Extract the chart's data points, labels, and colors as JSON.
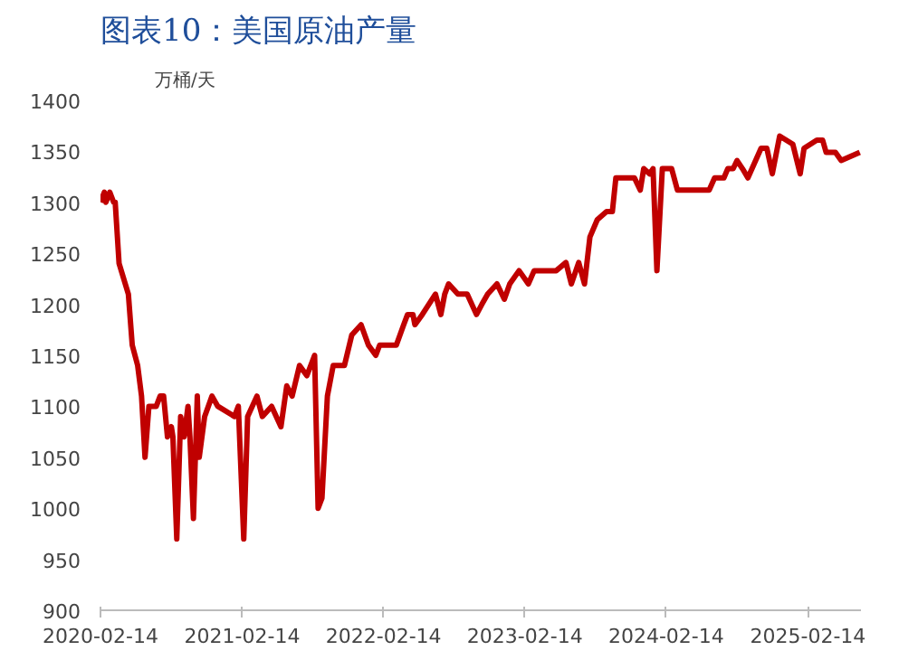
{
  "chart_data": {
    "type": "line",
    "title": "图表10：美国原油产量",
    "ylabel": "万桶/天",
    "x": [
      "2020-02-14",
      "2020-02-24",
      "2020-02-28",
      "2020-03-09",
      "2020-03-19",
      "2020-03-23",
      "2020-04-02",
      "2020-04-26",
      "2020-05-06",
      "2020-05-20",
      "2020-05-30",
      "2020-06-08",
      "2020-06-18",
      "2020-07-07",
      "2020-07-17",
      "2020-07-26",
      "2020-08-05",
      "2020-08-15",
      "2020-08-19",
      "2020-08-29",
      "2020-09-08",
      "2020-09-17",
      "2020-09-27",
      "2020-10-02",
      "2020-10-11",
      "2020-10-21",
      "2020-10-26",
      "2020-11-09",
      "2020-11-28",
      "2020-12-13",
      "2021-01-25",
      "2021-02-04",
      "2021-02-18",
      "2021-02-28",
      "2021-03-24",
      "2021-04-07",
      "2021-05-01",
      "2021-05-25",
      "2021-06-09",
      "2021-06-23",
      "2021-07-12",
      "2021-07-31",
      "2021-08-20",
      "2021-08-29",
      "2021-09-08",
      "2021-09-22",
      "2021-10-07",
      "2021-11-05",
      "2021-11-24",
      "2021-12-18",
      "2022-01-06",
      "2022-01-25",
      "2022-02-04",
      "2022-03-19",
      "2022-04-07",
      "2022-04-17",
      "2022-05-01",
      "2022-05-06",
      "2022-05-25",
      "2022-06-28",
      "2022-07-12",
      "2022-07-22",
      "2022-08-01",
      "2022-08-25",
      "2022-09-18",
      "2022-10-12",
      "2022-10-26",
      "2022-11-10",
      "2022-12-04",
      "2022-12-23",
      "2023-01-06",
      "2023-01-30",
      "2023-02-23",
      "2023-03-10",
      "2023-04-12",
      "2023-05-06",
      "2023-05-31",
      "2023-06-14",
      "2023-07-03",
      "2023-07-18",
      "2023-08-01",
      "2023-08-20",
      "2023-09-13",
      "2023-09-28",
      "2023-10-07",
      "2023-11-24",
      "2023-12-09",
      "2023-12-18",
      "2024-01-02",
      "2024-01-11",
      "2024-01-21",
      "2024-02-04",
      "2024-02-28",
      "2024-03-14",
      "2024-06-04",
      "2024-06-18",
      "2024-07-12",
      "2024-07-22",
      "2024-08-05",
      "2024-08-15",
      "2024-08-29",
      "2024-09-12",
      "2024-10-02",
      "2024-10-16",
      "2024-10-31",
      "2024-11-14",
      "2024-12-03",
      "2025-01-06",
      "2025-01-25",
      "2025-02-04",
      "2025-03-09",
      "2025-03-24",
      "2025-04-02",
      "2025-04-26",
      "2025-05-11",
      "2025-06-28"
    ],
    "series": [
      {
        "color": "#c00000",
        "values": [
          1300,
          1310,
          1300,
          1310,
          1300,
          1300,
          1240,
          1210,
          1160,
          1140,
          1110,
          1050,
          1100,
          1100,
          1110,
          1110,
          1070,
          1080,
          1070,
          970,
          1090,
          1070,
          1100,
          1070,
          990,
          1110,
          1050,
          1090,
          1110,
          1100,
          1090,
          1100,
          970,
          1090,
          1110,
          1090,
          1100,
          1080,
          1120,
          1110,
          1140,
          1130,
          1150,
          1000,
          1010,
          1110,
          1140,
          1140,
          1170,
          1180,
          1160,
          1150,
          1160,
          1160,
          1180,
          1190,
          1190,
          1180,
          1190,
          1210,
          1190,
          1210,
          1220,
          1210,
          1210,
          1190,
          1200,
          1210,
          1220,
          1205,
          1220,
          1233,
          1220,
          1233,
          1233,
          1233,
          1241,
          1220,
          1241,
          1220,
          1266,
          1283,
          1291,
          1291,
          1324,
          1324,
          1312,
          1333,
          1328,
          1333,
          1233,
          1333,
          1333,
          1312,
          1312,
          1324,
          1324,
          1333,
          1333,
          1341,
          1333,
          1324,
          1341,
          1353,
          1353,
          1328,
          1365,
          1357,
          1328,
          1353,
          1361,
          1361,
          1349,
          1349,
          1341,
          1349
        ]
      }
    ],
    "ylim": [
      900,
      1400
    ],
    "yticks": [
      900,
      950,
      1000,
      1050,
      1100,
      1150,
      1200,
      1250,
      1300,
      1350,
      1400
    ],
    "xlim": [
      "2020-02-14",
      "2025-07-01"
    ],
    "xticks": [
      "2020-02-14",
      "2021-02-14",
      "2022-02-14",
      "2023-02-14",
      "2024-02-14",
      "2025-02-14"
    ],
    "grid": false
  }
}
